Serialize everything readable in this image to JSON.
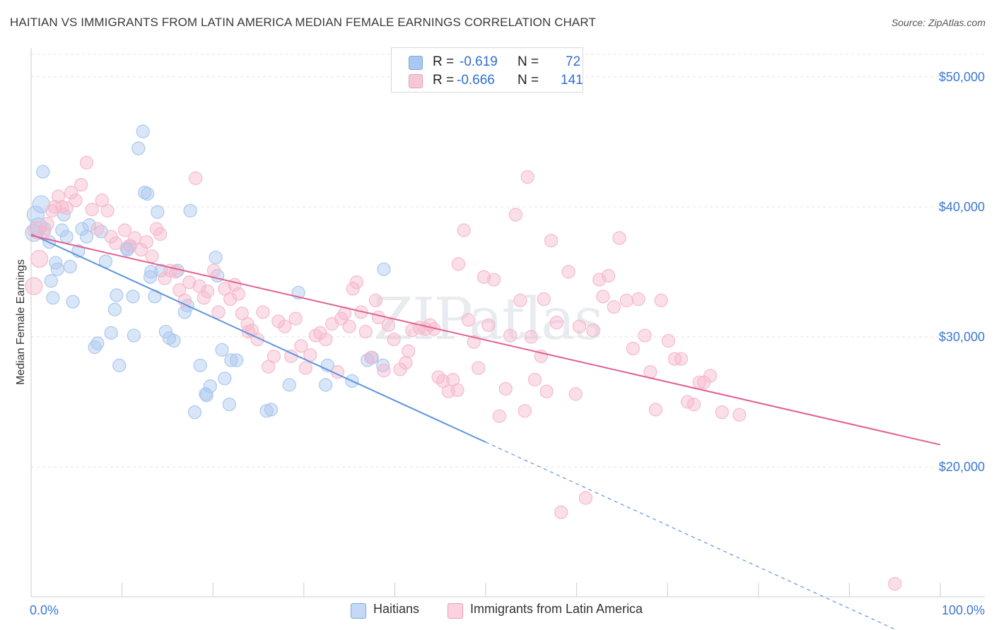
{
  "title": "HAITIAN VS IMMIGRANTS FROM LATIN AMERICA MEDIAN FEMALE EARNINGS CORRELATION CHART",
  "source": "Source: ZipAtlas.com",
  "watermark": "ZIPatlas",
  "legend_top": {
    "rows": [
      {
        "r_label": "R =",
        "r_value": "-0.619",
        "n_label": "N =",
        "n_value": "72",
        "color": "#aac8f0"
      },
      {
        "r_label": "R =",
        "r_value": "-0.666",
        "n_label": "N =",
        "n_value": "141",
        "color": "#f6b9cc"
      }
    ]
  },
  "legend_bottom": [
    {
      "label": "Haitians",
      "color": "#aac8f0"
    },
    {
      "label": "Immigrants from Latin America",
      "color": "#f6b9cc"
    }
  ],
  "chart_data": {
    "type": "scatter",
    "title": "HAITIAN VS IMMIGRANTS FROM LATIN AMERICA MEDIAN FEMALE EARNINGS CORRELATION CHART",
    "xlabel": "",
    "ylabel": "Median Female Earnings",
    "x_tick_labels": [
      "0.0%",
      "100.0%"
    ],
    "y_tick_labels": [
      "$20,000",
      "$30,000",
      "$40,000",
      "$50,000"
    ],
    "y_ticks": [
      20000,
      30000,
      40000,
      50000
    ],
    "xlim": [
      0,
      100
    ],
    "ylim": [
      10000,
      52000
    ],
    "grid": true,
    "legend_position": "top-center",
    "series": [
      {
        "name": "Haitians",
        "color": "#5b94e0",
        "fill": "#aac8f0",
        "trend": {
          "x0": 0,
          "y0": 37900,
          "x1": 50,
          "y1": 21900,
          "dash_to_x": 100
        },
        "points": [
          [
            0.3,
            38000
          ],
          [
            0.5,
            39400
          ],
          [
            0.8,
            38500
          ],
          [
            1.1,
            40200
          ],
          [
            1.3,
            42700
          ],
          [
            1.5,
            38300
          ],
          [
            2.0,
            37300
          ],
          [
            2.2,
            34300
          ],
          [
            2.4,
            33000
          ],
          [
            2.7,
            35700
          ],
          [
            2.9,
            35200
          ],
          [
            3.4,
            38200
          ],
          [
            3.6,
            39400
          ],
          [
            3.9,
            37700
          ],
          [
            4.3,
            35400
          ],
          [
            4.6,
            32700
          ],
          [
            5.2,
            36600
          ],
          [
            5.6,
            38300
          ],
          [
            6.1,
            37700
          ],
          [
            6.4,
            38600
          ],
          [
            7.0,
            29200
          ],
          [
            7.3,
            29500
          ],
          [
            7.7,
            38100
          ],
          [
            8.2,
            35800
          ],
          [
            8.8,
            30300
          ],
          [
            9.2,
            32100
          ],
          [
            9.4,
            33200
          ],
          [
            9.7,
            27800
          ],
          [
            10.5,
            36800
          ],
          [
            10.9,
            37000
          ],
          [
            11.3,
            30100
          ],
          [
            11.2,
            33100
          ],
          [
            11.8,
            44500
          ],
          [
            12.3,
            45800
          ],
          [
            12.5,
            41100
          ],
          [
            12.8,
            41000
          ],
          [
            13.1,
            34600
          ],
          [
            13.6,
            33100
          ],
          [
            13.9,
            39600
          ],
          [
            14.3,
            35100
          ],
          [
            14.8,
            30400
          ],
          [
            15.2,
            29900
          ],
          [
            15.7,
            29700
          ],
          [
            16.1,
            35100
          ],
          [
            16.9,
            31900
          ],
          [
            17.2,
            32400
          ],
          [
            17.5,
            39700
          ],
          [
            18.0,
            24200
          ],
          [
            18.6,
            27800
          ],
          [
            19.2,
            25600
          ],
          [
            19.3,
            25500
          ],
          [
            19.7,
            26200
          ],
          [
            20.3,
            36100
          ],
          [
            20.5,
            34700
          ],
          [
            21.3,
            26800
          ],
          [
            21.8,
            24800
          ],
          [
            22.0,
            28200
          ],
          [
            22.6,
            28200
          ],
          [
            25.9,
            24300
          ],
          [
            26.4,
            24400
          ],
          [
            28.4,
            26300
          ],
          [
            29.4,
            33400
          ],
          [
            32.4,
            26300
          ],
          [
            32.6,
            27800
          ],
          [
            35.3,
            26600
          ],
          [
            37.0,
            28200
          ],
          [
            37.5,
            28400
          ],
          [
            38.7,
            27800
          ],
          [
            38.8,
            35200
          ],
          [
            10.6,
            36700
          ],
          [
            13.2,
            35000
          ],
          [
            21.0,
            29000
          ]
        ]
      },
      {
        "name": "Immigrants from Latin America",
        "color": "#e06090",
        "fill": "#f6b9cc",
        "trend": {
          "x0": 0,
          "y0": 37800,
          "x1": 100,
          "y1": 21700
        },
        "points": [
          [
            0.3,
            33900
          ],
          [
            0.6,
            38200
          ],
          [
            0.9,
            36000
          ],
          [
            1.4,
            38000
          ],
          [
            1.8,
            38700
          ],
          [
            2.3,
            39700
          ],
          [
            2.6,
            40000
          ],
          [
            3.0,
            40800
          ],
          [
            3.4,
            40000
          ],
          [
            3.9,
            39900
          ],
          [
            4.4,
            41100
          ],
          [
            4.9,
            40500
          ],
          [
            5.5,
            41700
          ],
          [
            6.1,
            43400
          ],
          [
            6.7,
            39800
          ],
          [
            7.3,
            38300
          ],
          [
            7.8,
            40500
          ],
          [
            8.4,
            39700
          ],
          [
            8.8,
            37700
          ],
          [
            9.3,
            37200
          ],
          [
            10.3,
            38200
          ],
          [
            10.8,
            37000
          ],
          [
            11.4,
            37600
          ],
          [
            12.1,
            36700
          ],
          [
            12.7,
            37300
          ],
          [
            13.3,
            36200
          ],
          [
            13.8,
            38300
          ],
          [
            14.2,
            37900
          ],
          [
            14.7,
            34500
          ],
          [
            15.3,
            35100
          ],
          [
            15.9,
            35000
          ],
          [
            16.3,
            33600
          ],
          [
            16.9,
            32800
          ],
          [
            17.4,
            34200
          ],
          [
            18.1,
            42200
          ],
          [
            18.5,
            33900
          ],
          [
            19.0,
            33000
          ],
          [
            19.4,
            33500
          ],
          [
            20.1,
            35100
          ],
          [
            20.6,
            31900
          ],
          [
            21.3,
            33700
          ],
          [
            21.9,
            32900
          ],
          [
            22.4,
            34000
          ],
          [
            22.8,
            33300
          ],
          [
            23.2,
            31800
          ],
          [
            23.8,
            31000
          ],
          [
            24.3,
            30500
          ],
          [
            24.9,
            29800
          ],
          [
            25.5,
            31900
          ],
          [
            26.1,
            27700
          ],
          [
            26.7,
            28500
          ],
          [
            27.2,
            31200
          ],
          [
            27.9,
            30800
          ],
          [
            28.6,
            28500
          ],
          [
            29.1,
            31400
          ],
          [
            29.7,
            29300
          ],
          [
            30.2,
            27600
          ],
          [
            30.7,
            28600
          ],
          [
            31.3,
            30100
          ],
          [
            31.8,
            30300
          ],
          [
            32.4,
            29800
          ],
          [
            33.1,
            31000
          ],
          [
            33.7,
            27300
          ],
          [
            34.1,
            31400
          ],
          [
            34.5,
            31800
          ],
          [
            35.0,
            30800
          ],
          [
            35.4,
            33700
          ],
          [
            35.8,
            34200
          ],
          [
            36.3,
            31900
          ],
          [
            36.8,
            30400
          ],
          [
            37.4,
            28400
          ],
          [
            37.9,
            32800
          ],
          [
            38.2,
            31500
          ],
          [
            38.8,
            27400
          ],
          [
            39.3,
            30900
          ],
          [
            39.9,
            29800
          ],
          [
            40.6,
            27500
          ],
          [
            41.2,
            28000
          ],
          [
            41.5,
            28900
          ],
          [
            41.9,
            30500
          ],
          [
            42.7,
            30700
          ],
          [
            43.4,
            30600
          ],
          [
            43.9,
            30900
          ],
          [
            44.3,
            30600
          ],
          [
            44.8,
            26900
          ],
          [
            45.3,
            26600
          ],
          [
            45.9,
            25800
          ],
          [
            46.4,
            26700
          ],
          [
            47.0,
            35600
          ],
          [
            47.6,
            38200
          ],
          [
            48.1,
            31300
          ],
          [
            48.7,
            29600
          ],
          [
            49.2,
            27600
          ],
          [
            49.8,
            34600
          ],
          [
            50.3,
            30900
          ],
          [
            50.9,
            34400
          ],
          [
            51.5,
            23900
          ],
          [
            52.2,
            26000
          ],
          [
            52.7,
            30100
          ],
          [
            53.3,
            39400
          ],
          [
            53.8,
            32800
          ],
          [
            54.3,
            24300
          ],
          [
            54.6,
            42300
          ],
          [
            55.0,
            30000
          ],
          [
            55.4,
            26700
          ],
          [
            56.1,
            28500
          ],
          [
            56.7,
            25800
          ],
          [
            57.2,
            37400
          ],
          [
            57.8,
            31100
          ],
          [
            58.3,
            16500
          ],
          [
            59.1,
            35000
          ],
          [
            59.9,
            25600
          ],
          [
            60.3,
            30800
          ],
          [
            61.0,
            17600
          ],
          [
            61.8,
            30500
          ],
          [
            62.5,
            34400
          ],
          [
            62.9,
            33100
          ],
          [
            63.5,
            34700
          ],
          [
            64.1,
            32300
          ],
          [
            64.7,
            37600
          ],
          [
            65.5,
            32800
          ],
          [
            66.2,
            29100
          ],
          [
            66.8,
            32900
          ],
          [
            67.5,
            30100
          ],
          [
            68.1,
            27300
          ],
          [
            68.7,
            24400
          ],
          [
            69.3,
            32800
          ],
          [
            70.1,
            29700
          ],
          [
            70.8,
            28300
          ],
          [
            71.5,
            28300
          ],
          [
            72.2,
            25000
          ],
          [
            72.9,
            24800
          ],
          [
            73.5,
            26500
          ],
          [
            74.0,
            26500
          ],
          [
            74.7,
            27000
          ],
          [
            76.0,
            24200
          ],
          [
            77.9,
            24000
          ],
          [
            95.0,
            11000
          ],
          [
            23.9,
            30400
          ],
          [
            46.9,
            25900
          ],
          [
            56.4,
            32900
          ]
        ]
      }
    ]
  }
}
